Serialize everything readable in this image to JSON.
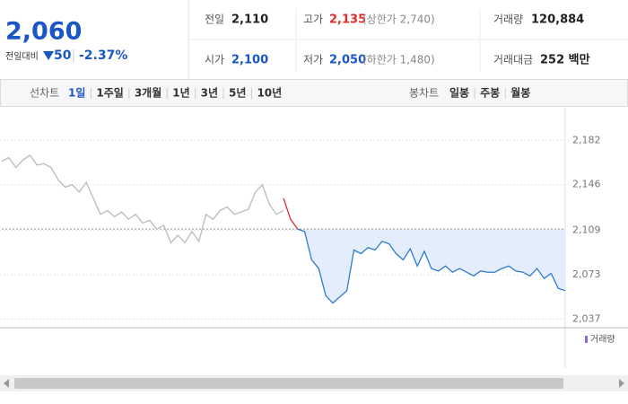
{
  "header": {
    "price": "2,060",
    "change_label": "전일대비",
    "change": "50",
    "change_pct": "-2.37%",
    "stats": [
      {
        "label": "전일",
        "value": "2,110"
      },
      {
        "label": "고가",
        "value": "2,135",
        "note": "(상한가 2,740)"
      },
      {
        "label": "거래량",
        "value": "120,884"
      },
      {
        "label": "시가",
        "value": "2,100"
      },
      {
        "label": "저가",
        "value": "2,050",
        "note": "(하한가 1,480)"
      },
      {
        "label": "거래대금",
        "value": "252 백만"
      }
    ]
  },
  "tabs": {
    "line_label": "선차트",
    "periods": [
      "1일",
      "1주일",
      "3개월",
      "1년",
      "3년",
      "5년",
      "10년"
    ],
    "candle_label": "봉차트",
    "candles": [
      "일봉",
      "주봉",
      "월봉"
    ]
  },
  "chart_data": {
    "type": "line",
    "ylim": [
      2030,
      2207
    ],
    "yticks": [
      {
        "value": 2037,
        "label": "2,037"
      },
      {
        "value": 2073,
        "label": "2,073"
      },
      {
        "value": 2109,
        "label": "2,109"
      },
      {
        "value": 2146,
        "label": "2,146"
      },
      {
        "value": 2182,
        "label": "2,182"
      }
    ],
    "reference": 2110,
    "grid": true,
    "volume_label": "거래량",
    "series": [
      {
        "color": "#bbbbbb",
        "values": [
          2165,
          2168,
          2160,
          2166,
          2170,
          2162,
          2163,
          2160,
          2150,
          2144,
          2146,
          2140,
          2148,
          2135,
          2122,
          2125,
          2120,
          2124,
          2118,
          2122,
          2115,
          2117,
          2110,
          2113,
          2099,
          2105,
          2099,
          2108,
          2100,
          2122,
          2118,
          2125,
          2128,
          2122,
          2124,
          2126,
          2140,
          2146,
          2130,
          2122,
          2125,
          null,
          null,
          null,
          null,
          null,
          null,
          null,
          null,
          null,
          null,
          null,
          null,
          null,
          null,
          null,
          null,
          null,
          null,
          null,
          null,
          null,
          null,
          null,
          null,
          null,
          null,
          null,
          null,
          null,
          null,
          null,
          null,
          null,
          null,
          null,
          null,
          null,
          null,
          null,
          null
        ]
      },
      {
        "color": "#e02b2b",
        "values": [
          null,
          null,
          null,
          null,
          null,
          null,
          null,
          null,
          null,
          null,
          null,
          null,
          null,
          null,
          null,
          null,
          null,
          null,
          null,
          null,
          null,
          null,
          null,
          null,
          null,
          null,
          null,
          null,
          null,
          null,
          null,
          null,
          null,
          null,
          null,
          null,
          null,
          null,
          null,
          null,
          2135,
          2118,
          2110,
          null,
          null,
          null,
          null,
          null,
          null,
          null,
          null,
          null,
          null,
          null,
          null,
          null,
          null,
          null,
          null,
          null,
          null,
          null,
          null,
          null,
          null,
          null,
          null,
          null,
          null,
          null,
          null,
          null,
          null,
          null,
          null,
          null,
          null,
          null,
          null,
          null,
          null
        ]
      },
      {
        "color": "#2e7ad1",
        "area": true,
        "values": [
          null,
          null,
          null,
          null,
          null,
          null,
          null,
          null,
          null,
          null,
          null,
          null,
          null,
          null,
          null,
          null,
          null,
          null,
          null,
          null,
          null,
          null,
          null,
          null,
          null,
          null,
          null,
          null,
          null,
          null,
          null,
          null,
          null,
          null,
          null,
          null,
          null,
          null,
          null,
          null,
          null,
          null,
          2110,
          2108,
          2085,
          2078,
          2056,
          2050,
          2055,
          2060,
          2093,
          2090,
          2095,
          2093,
          2100,
          2098,
          2090,
          2085,
          2094,
          2080,
          2092,
          2078,
          2076,
          2080,
          2075,
          2078,
          2075,
          2072,
          2076,
          2075,
          2075,
          2078,
          2080,
          2076,
          2075,
          2072,
          2078,
          2070,
          2074,
          2062,
          2060
        ]
      }
    ]
  }
}
